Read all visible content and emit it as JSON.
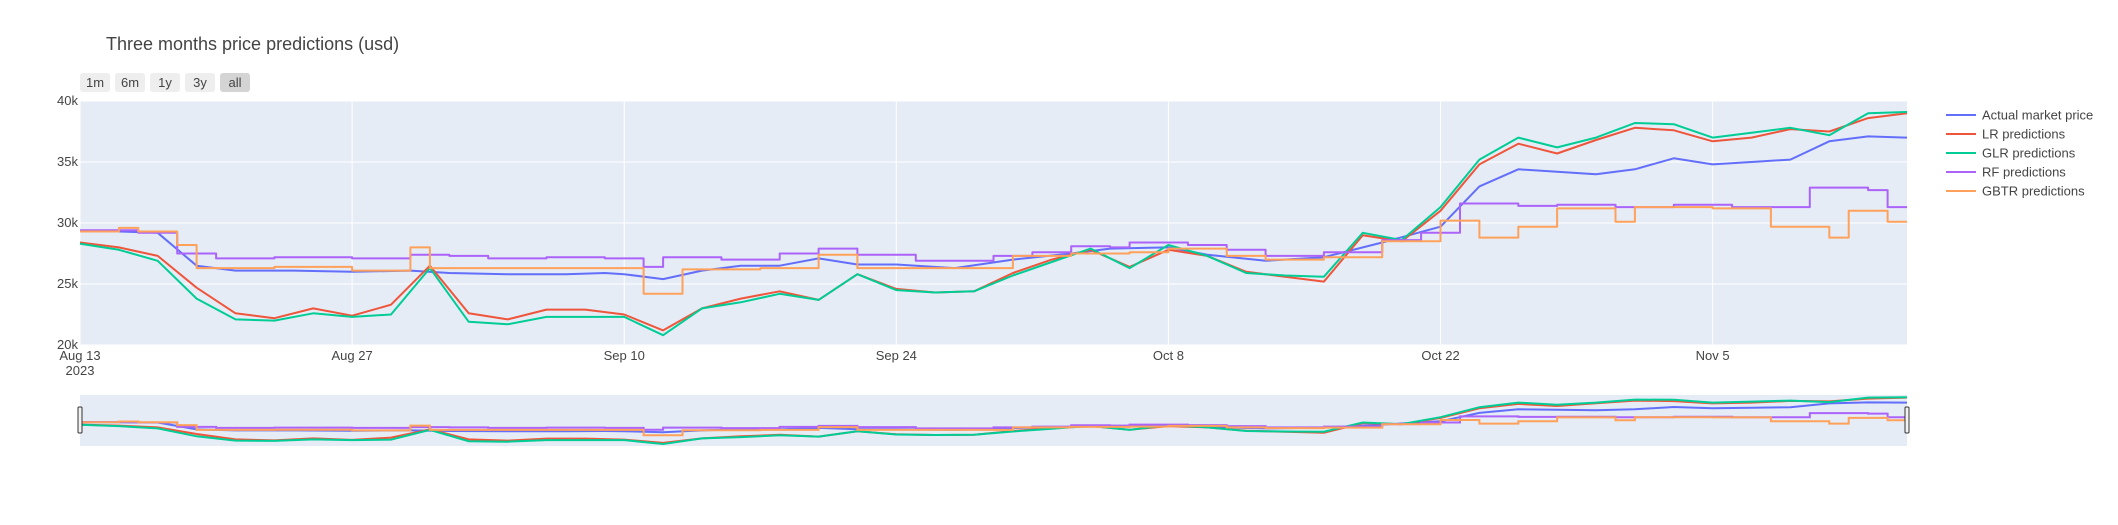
{
  "title": "Three months price predictions (usd)",
  "range_buttons": [
    {
      "label": "1m",
      "active": false
    },
    {
      "label": "6m",
      "active": false
    },
    {
      "label": "1y",
      "active": false
    },
    {
      "label": "3y",
      "active": false
    },
    {
      "label": "all",
      "active": true
    }
  ],
  "colors": {
    "plot_bg": "#e5ecf6",
    "grid": "#ffffff",
    "rangeslider_bg": "#e5ecf6",
    "button_bg": "#eeeeee",
    "button_active_bg": "#d4d4d4"
  },
  "chart_data": {
    "type": "line",
    "title": "Three months price predictions (usd)",
    "xlim": [
      "2023-08-13",
      "2023-11-15"
    ],
    "ylim": [
      20000,
      40000
    ],
    "x_ticks": [
      {
        "date": "2023-08-13",
        "label": "Aug 13",
        "sublabel": "2023"
      },
      {
        "date": "2023-08-27",
        "label": "Aug 27"
      },
      {
        "date": "2023-09-10",
        "label": "Sep 10"
      },
      {
        "date": "2023-09-24",
        "label": "Sep 24"
      },
      {
        "date": "2023-10-08",
        "label": "Oct 8"
      },
      {
        "date": "2023-10-22",
        "label": "Oct 22"
      },
      {
        "date": "2023-11-05",
        "label": "Nov 5"
      }
    ],
    "y_ticks": [
      {
        "value": 20000,
        "label": "20k"
      },
      {
        "value": 25000,
        "label": "25k"
      },
      {
        "value": 30000,
        "label": "30k"
      },
      {
        "value": 35000,
        "label": "35k"
      },
      {
        "value": 40000,
        "label": "40k"
      }
    ],
    "grid": true,
    "legend_position": "right",
    "rangeslider": true,
    "series": [
      {
        "name": "Actual market price",
        "color": "#636efa",
        "shape": "linear",
        "points": [
          [
            "2023-08-13",
            29300
          ],
          [
            "2023-08-15",
            29300
          ],
          [
            "2023-08-17",
            29200
          ],
          [
            "2023-08-19",
            26500
          ],
          [
            "2023-08-21",
            26100
          ],
          [
            "2023-08-24",
            26100
          ],
          [
            "2023-08-27",
            26000
          ],
          [
            "2023-08-30",
            26100
          ],
          [
            "2023-09-01",
            25900
          ],
          [
            "2023-09-04",
            25800
          ],
          [
            "2023-09-07",
            25800
          ],
          [
            "2023-09-09",
            25900
          ],
          [
            "2023-09-10",
            25800
          ],
          [
            "2023-09-12",
            25400
          ],
          [
            "2023-09-14",
            26100
          ],
          [
            "2023-09-16",
            26500
          ],
          [
            "2023-09-18",
            26500
          ],
          [
            "2023-09-20",
            27100
          ],
          [
            "2023-09-22",
            26600
          ],
          [
            "2023-09-24",
            26600
          ],
          [
            "2023-09-27",
            26300
          ],
          [
            "2023-09-30",
            27000
          ],
          [
            "2023-10-03",
            27500
          ],
          [
            "2023-10-05",
            27900
          ],
          [
            "2023-10-08",
            28000
          ],
          [
            "2023-10-10",
            27400
          ],
          [
            "2023-10-13",
            26900
          ],
          [
            "2023-10-16",
            27200
          ],
          [
            "2023-10-19",
            28400
          ],
          [
            "2023-10-22",
            29700
          ],
          [
            "2023-10-24",
            33000
          ],
          [
            "2023-10-26",
            34400
          ],
          [
            "2023-10-28",
            34200
          ],
          [
            "2023-10-30",
            34000
          ],
          [
            "2023-11-01",
            34400
          ],
          [
            "2023-11-03",
            35300
          ],
          [
            "2023-11-05",
            34800
          ],
          [
            "2023-11-07",
            35000
          ],
          [
            "2023-11-09",
            35200
          ],
          [
            "2023-11-11",
            36700
          ],
          [
            "2023-11-13",
            37100
          ],
          [
            "2023-11-15",
            37000
          ]
        ]
      },
      {
        "name": "LR predictions",
        "color": "#ef553b",
        "shape": "linear",
        "points": [
          [
            "2023-08-13",
            28400
          ],
          [
            "2023-08-15",
            28000
          ],
          [
            "2023-08-17",
            27300
          ],
          [
            "2023-08-19",
            24700
          ],
          [
            "2023-08-21",
            22600
          ],
          [
            "2023-08-23",
            22200
          ],
          [
            "2023-08-25",
            23000
          ],
          [
            "2023-08-27",
            22400
          ],
          [
            "2023-08-29",
            23300
          ],
          [
            "2023-08-31",
            26500
          ],
          [
            "2023-09-02",
            22600
          ],
          [
            "2023-09-04",
            22100
          ],
          [
            "2023-09-06",
            22900
          ],
          [
            "2023-09-08",
            22900
          ],
          [
            "2023-09-10",
            22500
          ],
          [
            "2023-09-12",
            21200
          ],
          [
            "2023-09-14",
            23000
          ],
          [
            "2023-09-16",
            23800
          ],
          [
            "2023-09-18",
            24400
          ],
          [
            "2023-09-20",
            23700
          ],
          [
            "2023-09-22",
            25800
          ],
          [
            "2023-09-24",
            24600
          ],
          [
            "2023-09-26",
            24300
          ],
          [
            "2023-09-28",
            24400
          ],
          [
            "2023-09-30",
            25900
          ],
          [
            "2023-10-02",
            27000
          ],
          [
            "2023-10-04",
            27800
          ],
          [
            "2023-10-06",
            26400
          ],
          [
            "2023-10-08",
            27800
          ],
          [
            "2023-10-10",
            27300
          ],
          [
            "2023-10-12",
            26000
          ],
          [
            "2023-10-14",
            25600
          ],
          [
            "2023-10-16",
            25200
          ],
          [
            "2023-10-18",
            29000
          ],
          [
            "2023-10-20",
            28500
          ],
          [
            "2023-10-22",
            31000
          ],
          [
            "2023-10-24",
            34800
          ],
          [
            "2023-10-26",
            36500
          ],
          [
            "2023-10-28",
            35700
          ],
          [
            "2023-10-30",
            36800
          ],
          [
            "2023-11-01",
            37800
          ],
          [
            "2023-11-03",
            37600
          ],
          [
            "2023-11-05",
            36700
          ],
          [
            "2023-11-07",
            37000
          ],
          [
            "2023-11-09",
            37700
          ],
          [
            "2023-11-11",
            37500
          ],
          [
            "2023-11-13",
            38600
          ],
          [
            "2023-11-15",
            39000
          ]
        ]
      },
      {
        "name": "GLR predictions",
        "color": "#00cc96",
        "shape": "linear",
        "points": [
          [
            "2023-08-13",
            28300
          ],
          [
            "2023-08-15",
            27800
          ],
          [
            "2023-08-17",
            26900
          ],
          [
            "2023-08-19",
            23800
          ],
          [
            "2023-08-21",
            22100
          ],
          [
            "2023-08-23",
            22000
          ],
          [
            "2023-08-25",
            22600
          ],
          [
            "2023-08-27",
            22300
          ],
          [
            "2023-08-29",
            22500
          ],
          [
            "2023-08-31",
            26300
          ],
          [
            "2023-09-02",
            21900
          ],
          [
            "2023-09-04",
            21700
          ],
          [
            "2023-09-06",
            22300
          ],
          [
            "2023-09-08",
            22300
          ],
          [
            "2023-09-10",
            22300
          ],
          [
            "2023-09-12",
            20800
          ],
          [
            "2023-09-14",
            23000
          ],
          [
            "2023-09-16",
            23500
          ],
          [
            "2023-09-18",
            24200
          ],
          [
            "2023-09-20",
            23700
          ],
          [
            "2023-09-22",
            25800
          ],
          [
            "2023-09-24",
            24500
          ],
          [
            "2023-09-26",
            24300
          ],
          [
            "2023-09-28",
            24400
          ],
          [
            "2023-09-30",
            25700
          ],
          [
            "2023-10-02",
            26800
          ],
          [
            "2023-10-04",
            27900
          ],
          [
            "2023-10-06",
            26300
          ],
          [
            "2023-10-08",
            28200
          ],
          [
            "2023-10-10",
            27300
          ],
          [
            "2023-10-12",
            25900
          ],
          [
            "2023-10-14",
            25700
          ],
          [
            "2023-10-16",
            25600
          ],
          [
            "2023-10-18",
            29200
          ],
          [
            "2023-10-20",
            28600
          ],
          [
            "2023-10-22",
            31300
          ],
          [
            "2023-10-24",
            35200
          ],
          [
            "2023-10-26",
            37000
          ],
          [
            "2023-10-28",
            36200
          ],
          [
            "2023-10-30",
            37000
          ],
          [
            "2023-11-01",
            38200
          ],
          [
            "2023-11-03",
            38100
          ],
          [
            "2023-11-05",
            37000
          ],
          [
            "2023-11-07",
            37400
          ],
          [
            "2023-11-09",
            37800
          ],
          [
            "2023-11-11",
            37200
          ],
          [
            "2023-11-13",
            39000
          ],
          [
            "2023-11-15",
            39100
          ]
        ]
      },
      {
        "name": "RF predictions",
        "color": "#ab63fa",
        "shape": "hv",
        "points": [
          [
            "2023-08-13",
            29400
          ],
          [
            "2023-08-16",
            29200
          ],
          [
            "2023-08-18",
            27500
          ],
          [
            "2023-08-20",
            27100
          ],
          [
            "2023-08-23",
            27200
          ],
          [
            "2023-08-27",
            27100
          ],
          [
            "2023-08-30",
            27400
          ],
          [
            "2023-09-01",
            27300
          ],
          [
            "2023-09-03",
            27100
          ],
          [
            "2023-09-06",
            27200
          ],
          [
            "2023-09-09",
            27100
          ],
          [
            "2023-09-11",
            26400
          ],
          [
            "2023-09-12",
            27200
          ],
          [
            "2023-09-15",
            27000
          ],
          [
            "2023-09-18",
            27500
          ],
          [
            "2023-09-20",
            27900
          ],
          [
            "2023-09-22",
            27400
          ],
          [
            "2023-09-25",
            26900
          ],
          [
            "2023-09-29",
            27300
          ],
          [
            "2023-10-01",
            27600
          ],
          [
            "2023-10-03",
            28100
          ],
          [
            "2023-10-05",
            28000
          ],
          [
            "2023-10-06",
            28400
          ],
          [
            "2023-10-09",
            28200
          ],
          [
            "2023-10-11",
            27800
          ],
          [
            "2023-10-13",
            27300
          ],
          [
            "2023-10-16",
            27600
          ],
          [
            "2023-10-19",
            28600
          ],
          [
            "2023-10-21",
            29200
          ],
          [
            "2023-10-23",
            31600
          ],
          [
            "2023-10-26",
            31400
          ],
          [
            "2023-10-28",
            31500
          ],
          [
            "2023-10-31",
            31300
          ],
          [
            "2023-11-03",
            31500
          ],
          [
            "2023-11-06",
            31300
          ],
          [
            "2023-11-10",
            32900
          ],
          [
            "2023-11-13",
            32700
          ],
          [
            "2023-11-14",
            31300
          ],
          [
            "2023-11-15",
            31300
          ]
        ]
      },
      {
        "name": "GBTR predictions",
        "color": "#ffa15a",
        "shape": "hv",
        "points": [
          [
            "2023-08-13",
            29300
          ],
          [
            "2023-08-15",
            29600
          ],
          [
            "2023-08-16",
            29300
          ],
          [
            "2023-08-18",
            28200
          ],
          [
            "2023-08-19",
            26300
          ],
          [
            "2023-08-23",
            26400
          ],
          [
            "2023-08-27",
            26100
          ],
          [
            "2023-08-30",
            28000
          ],
          [
            "2023-08-31",
            26300
          ],
          [
            "2023-09-03",
            26300
          ],
          [
            "2023-09-07",
            26300
          ],
          [
            "2023-09-11",
            24200
          ],
          [
            "2023-09-13",
            26200
          ],
          [
            "2023-09-17",
            26300
          ],
          [
            "2023-09-20",
            27400
          ],
          [
            "2023-09-22",
            26300
          ],
          [
            "2023-09-27",
            26300
          ],
          [
            "2023-09-30",
            27300
          ],
          [
            "2023-10-03",
            27500
          ],
          [
            "2023-10-06",
            27600
          ],
          [
            "2023-10-08",
            27900
          ],
          [
            "2023-10-11",
            27300
          ],
          [
            "2023-10-13",
            27000
          ],
          [
            "2023-10-16",
            27200
          ],
          [
            "2023-10-19",
            28500
          ],
          [
            "2023-10-22",
            30200
          ],
          [
            "2023-10-24",
            28800
          ],
          [
            "2023-10-26",
            29700
          ],
          [
            "2023-10-28",
            31200
          ],
          [
            "2023-10-31",
            30100
          ],
          [
            "2023-11-01",
            31300
          ],
          [
            "2023-11-05",
            31200
          ],
          [
            "2023-11-08",
            29700
          ],
          [
            "2023-11-11",
            28800
          ],
          [
            "2023-11-12",
            31000
          ],
          [
            "2023-11-14",
            30100
          ],
          [
            "2023-11-15",
            30100
          ]
        ]
      }
    ]
  }
}
